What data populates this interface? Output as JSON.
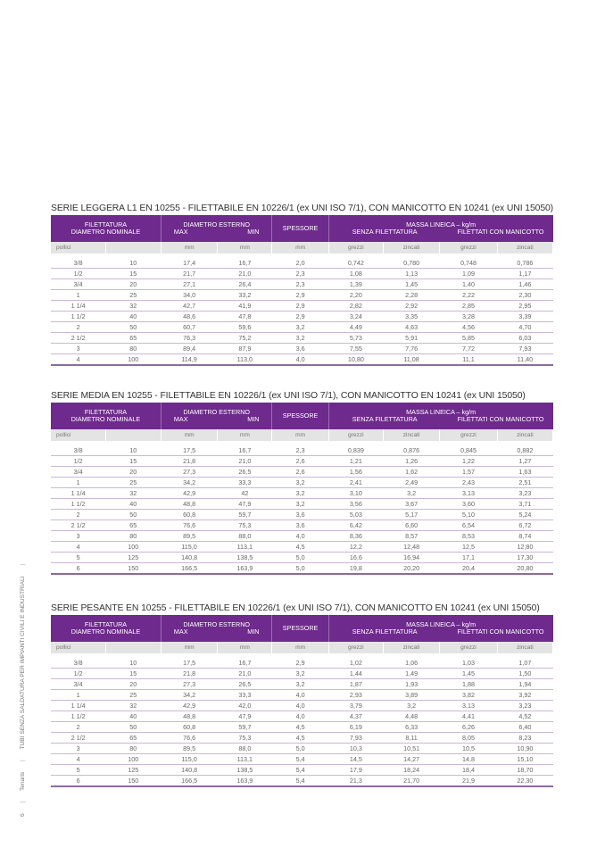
{
  "header_labels": {
    "filettatura": "FILETTATURA",
    "diametro_nominale": "DIAMETRO NOMINALE",
    "diametro_esterno": "DIAMETRO ESTERNO",
    "max": "MAX",
    "min": "MIN",
    "spessore": "SPESSORE",
    "massa": "MASSA LINEICA – kg/m",
    "senza": "SENZA FILETTATURA",
    "filettati": "FILETTATI CON MANICOTTO"
  },
  "units": [
    "pollici",
    "",
    "mm",
    "mm",
    "mm",
    "grezzi",
    "zincati",
    "grezzi",
    "zincati"
  ],
  "tables": [
    {
      "title": "SERIE LEGGERA L1 EN 10255 - FILETTABILE EN 10226/1 (ex UNI ISO 7/1), CON MANICOTTO EN 10241 (ex UNI 15050)",
      "rows": [
        [
          "3/8",
          "10",
          "17,4",
          "16,7",
          "2,0",
          "0,742",
          "0,780",
          "0,748",
          "0,786"
        ],
        [
          "1/2",
          "15",
          "21,7",
          "21,0",
          "2,3",
          "1,08",
          "1,13",
          "1,09",
          "1,17"
        ],
        [
          "3/4",
          "20",
          "27,1",
          "26,4",
          "2,3",
          "1,39",
          "1,45",
          "1,40",
          "1,46"
        ],
        [
          "1",
          "25",
          "34,0",
          "33,2",
          "2,9",
          "2,20",
          "2,28",
          "2,22",
          "2,30"
        ],
        [
          "1 1/4",
          "32",
          "42,7",
          "41,9",
          "2,9",
          "2,82",
          "2,92",
          "2,85",
          "2,95"
        ],
        [
          "1 1/2",
          "40",
          "48,6",
          "47,8",
          "2,9",
          "3,24",
          "3,35",
          "3,28",
          "3,39"
        ],
        [
          "2",
          "50",
          "60,7",
          "59,6",
          "3,2",
          "4,49",
          "4,63",
          "4,56",
          "4,70"
        ],
        [
          "2 1/2",
          "65",
          "76,3",
          "75,2",
          "3,2",
          "5,73",
          "5,91",
          "5,85",
          "6,03"
        ],
        [
          "3",
          "80",
          "89,4",
          "87,9",
          "3,6",
          "7,55",
          "7,76",
          "7,72",
          "7,93"
        ],
        [
          "4",
          "100",
          "114,9",
          "113,0",
          "4,0",
          "10,80",
          "11,08",
          "11,1",
          "11,40"
        ]
      ]
    },
    {
      "title": "SERIE MEDIA EN 10255 - FILETTABILE EN 10226/1 (ex UNI ISO 7/1), CON MANICOTTO EN 10241 (ex UNI 15050)",
      "rows": [
        [
          "3/8",
          "10",
          "17,5",
          "16,7",
          "2,3",
          "0,839",
          "0,876",
          "0,845",
          "0,882"
        ],
        [
          "1/2",
          "15",
          "21,8",
          "21,0",
          "2,6",
          "1,21",
          "1,26",
          "1,22",
          "1,27"
        ],
        [
          "3/4",
          "20",
          "27,3",
          "26,5",
          "2,6",
          "1,56",
          "1,62",
          "1,57",
          "1,63"
        ],
        [
          "1",
          "25",
          "34,2",
          "33,3",
          "3,2",
          "2,41",
          "2,49",
          "2,43",
          "2,51"
        ],
        [
          "1 1/4",
          "32",
          "42,9",
          "42",
          "3,2",
          "3,10",
          "3,2",
          "3,13",
          "3,23"
        ],
        [
          "1 1/2",
          "40",
          "48,8",
          "47,9",
          "3,2",
          "3,56",
          "3,67",
          "3,60",
          "3,71"
        ],
        [
          "2",
          "50",
          "60,8",
          "59,7",
          "3,6",
          "5,03",
          "5,17",
          "5,10",
          "5,24"
        ],
        [
          "2 1/2",
          "65",
          "76,6",
          "75,3",
          "3,6",
          "6,42",
          "6,60",
          "6,54",
          "6,72"
        ],
        [
          "3",
          "80",
          "89,5",
          "88,0",
          "4,0",
          "8,36",
          "8,57",
          "8,53",
          "8,74"
        ],
        [
          "4",
          "100",
          "115,0",
          "113,1",
          "4,5",
          "12,2",
          "12,48",
          "12,5",
          "12,80"
        ],
        [
          "5",
          "125",
          "140,8",
          "138,5",
          "5,0",
          "16,6",
          "16,94",
          "17,1",
          "17,30"
        ],
        [
          "6",
          "150",
          "166,5",
          "163,9",
          "5,0",
          "19,8",
          "20,20",
          "20,4",
          "20,80"
        ]
      ]
    },
    {
      "title": "SERIE PESANTE EN 10255 - FILETTABILE EN 10226/1 (ex UNI ISO 7/1), CON MANICOTTO EN 10241 (ex UNI 15050)",
      "rows": [
        [
          "3/8",
          "10",
          "17,5",
          "16,7",
          "2,9",
          "1,02",
          "1,06",
          "1,03",
          "1,07"
        ],
        [
          "1/2",
          "15",
          "21,8",
          "21,0",
          "3,2",
          "1,44",
          "1,49",
          "1,45",
          "1,50"
        ],
        [
          "3/4",
          "20",
          "27,3",
          "26,5",
          "3,2",
          "1,87",
          "1,93",
          "1,88",
          "1,94"
        ],
        [
          "1",
          "25",
          "34,2",
          "33,3",
          "4,0",
          "2,93",
          "3,89",
          "3,82",
          "3,92"
        ],
        [
          "1 1/4",
          "32",
          "42,9",
          "42,0",
          "4,0",
          "3,79",
          "3,2",
          "3,13",
          "3,23"
        ],
        [
          "1 1/2",
          "40",
          "48,8",
          "47,9",
          "4,0",
          "4,37",
          "4,48",
          "4,41",
          "4,52"
        ],
        [
          "2",
          "50",
          "60,8",
          "59,7",
          "4,5",
          "6,19",
          "6,33",
          "6,26",
          "6,40"
        ],
        [
          "2 1/2",
          "65",
          "76,6",
          "75,3",
          "4,5",
          "7,93",
          "8,11",
          "8,05",
          "8,23"
        ],
        [
          "3",
          "80",
          "89,5",
          "88,0",
          "5,0",
          "10,3",
          "10,51",
          "10,5",
          "10,90"
        ],
        [
          "4",
          "100",
          "115,0",
          "113,1",
          "5,4",
          "14,5",
          "14,27",
          "14,8",
          "15,10"
        ],
        [
          "5",
          "125",
          "140,8",
          "138,5",
          "5,4",
          "17,9",
          "18,24",
          "18,4",
          "18,70"
        ],
        [
          "6",
          "150",
          "166,5",
          "163,9",
          "5,4",
          "21,3",
          "21,70",
          "21,9",
          "22,30"
        ]
      ]
    }
  ],
  "side": {
    "page_number": "6",
    "brand": "Tenaris",
    "doc_title": "TUBI SENZA SALDATURA PER IMPIANTI CIVILI E INDUSTRIALI",
    "separator": "|"
  },
  "colors": {
    "header_purple": "#6e2a8c",
    "row_line": "#cbb8d8"
  }
}
